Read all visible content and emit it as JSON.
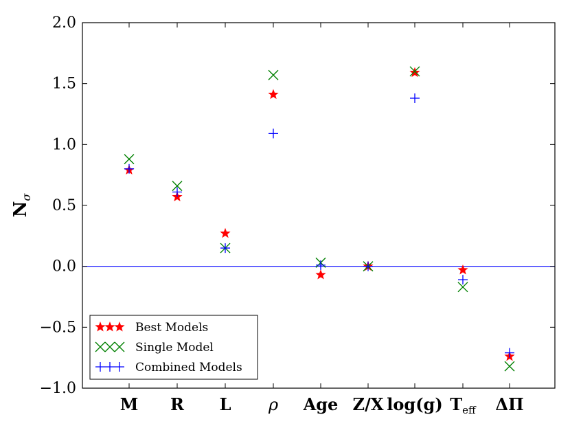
{
  "chart_data": {
    "type": "scatter",
    "title": "",
    "xlabel": "",
    "ylabel": "N",
    "ylabel_sub": "σ",
    "ylim": [
      -1.0,
      2.0
    ],
    "yticks": [
      2.0,
      1.5,
      1.0,
      0.5,
      0.0,
      -0.5,
      -1.0
    ],
    "ytick_labels": [
      "2.0",
      "1.5",
      "1.0",
      "0.5",
      "0.0",
      "−0.5",
      "−1.0"
    ],
    "categories": [
      "M",
      "R",
      "L",
      "ρ",
      "Age",
      "Z/X",
      "log(g)",
      "T",
      "ΔΠ"
    ],
    "category_subs": [
      "",
      "",
      "",
      "",
      "",
      "",
      "",
      "eff",
      ""
    ],
    "reference_line": 0.0,
    "legend_position": "lower-left",
    "series": [
      {
        "name": "Best Models",
        "marker": "star",
        "color": "#ff0000",
        "values": [
          0.79,
          0.57,
          0.27,
          1.41,
          -0.07,
          0.0,
          1.59,
          -0.03,
          -0.74
        ]
      },
      {
        "name": "Single Model",
        "marker": "x",
        "color": "#008000",
        "values": [
          0.88,
          0.66,
          0.15,
          1.57,
          0.03,
          0.0,
          1.6,
          -0.17,
          -0.82
        ]
      },
      {
        "name": "Combined Models",
        "marker": "plus",
        "color": "#0000ff",
        "values": [
          0.8,
          0.61,
          0.15,
          1.09,
          0.01,
          0.0,
          1.38,
          -0.11,
          -0.71
        ]
      }
    ]
  }
}
